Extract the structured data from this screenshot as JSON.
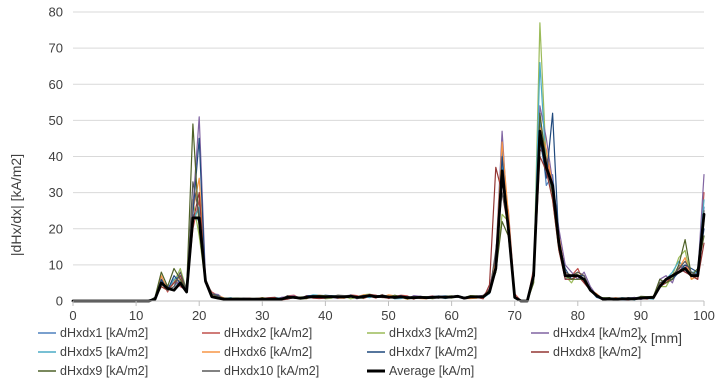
{
  "chart_data": {
    "type": "line",
    "title": "",
    "xlabel": "x [mm]",
    "ylabel": "|dHx/dx|  [kA/m2]",
    "xlim": [
      0,
      100
    ],
    "ylim": [
      0,
      80
    ],
    "x_ticks": [
      "0",
      "10",
      "20",
      "30",
      "40",
      "50",
      "60",
      "70",
      "80",
      "90",
      "100"
    ],
    "y_ticks": [
      "0",
      "10",
      "20",
      "30",
      "40",
      "50",
      "60",
      "70",
      "80"
    ],
    "grid": "horizontal",
    "legend_position": "bottom",
    "x": [
      0,
      1,
      2,
      3,
      4,
      5,
      6,
      7,
      8,
      9,
      10,
      11,
      12,
      13,
      14,
      15,
      16,
      17,
      18,
      19,
      20,
      21,
      22,
      23,
      24,
      25,
      26,
      27,
      28,
      29,
      30,
      31,
      32,
      33,
      34,
      35,
      36,
      37,
      38,
      39,
      40,
      41,
      42,
      43,
      44,
      45,
      46,
      47,
      48,
      49,
      50,
      51,
      52,
      53,
      54,
      55,
      56,
      57,
      58,
      59,
      60,
      61,
      62,
      63,
      64,
      65,
      66,
      67,
      68,
      69,
      70,
      71,
      72,
      73,
      74,
      75,
      76,
      77,
      78,
      79,
      80,
      81,
      82,
      83,
      84,
      85,
      86,
      87,
      88,
      89,
      90,
      91,
      92,
      93,
      94,
      95,
      96,
      97,
      98,
      99,
      100
    ],
    "series": [
      {
        "name": "dHxdx1 [kA/m2]",
        "color": "#4f81bd",
        "width": 1.2,
        "values": [
          0,
          0,
          0,
          0,
          0,
          0,
          0,
          0,
          0,
          0,
          0,
          0,
          0,
          0.6,
          5,
          3,
          4,
          6,
          2.5,
          24,
          22,
          6,
          2,
          1.2,
          0.8,
          0.5,
          0.6,
          0.3,
          0.5,
          0.6,
          0.6,
          0.3,
          0.7,
          0.5,
          1.1,
          1.4,
          0.9,
          1.2,
          1,
          1.3,
          1.1,
          1.3,
          0.9,
          1,
          1.3,
          1.1,
          1.1,
          1.6,
          1.1,
          1.4,
          1.2,
          1.1,
          1.3,
          1,
          0.7,
          0.9,
          0.8,
          1.1,
          1.4,
          0.8,
          1,
          1.1,
          0.6,
          0.8,
          0.9,
          1.6,
          2,
          10,
          42,
          18,
          1,
          0,
          0,
          6,
          50,
          32,
          35,
          18,
          6,
          7,
          7,
          6,
          3,
          1,
          0.4,
          0.5,
          0.6,
          0.4,
          0.3,
          0.6,
          0.6,
          1.1,
          0.8,
          4,
          6,
          6,
          8,
          9,
          7,
          8,
          26
        ]
      },
      {
        "name": "dHxdx2 [kA/m2]",
        "color": "#c0504d",
        "width": 1.2,
        "values": [
          0,
          0,
          0,
          0,
          0,
          0,
          0,
          0,
          0,
          0,
          0,
          0,
          0,
          0.9,
          6,
          2.5,
          6,
          4,
          3,
          20,
          28,
          5,
          2.5,
          1.5,
          0.4,
          0.9,
          0.3,
          0.7,
          0.8,
          0.4,
          0.3,
          0.7,
          0.3,
          0.6,
          1.4,
          1.6,
          0.6,
          1,
          1.6,
          1.6,
          1.3,
          1.1,
          1.1,
          0.8,
          1.7,
          1.5,
          0.7,
          1.3,
          0.8,
          1.8,
          0.7,
          1.3,
          1.6,
          1.4,
          0.5,
          1.3,
          1.1,
          1.4,
          1,
          1,
          1,
          1.4,
          0.7,
          1.2,
          1.2,
          1.4,
          2.6,
          13,
          35,
          25,
          2,
          0,
          0,
          9,
          42,
          40,
          32,
          16,
          8,
          7,
          9,
          5,
          3,
          2,
          0.4,
          0.9,
          0.3,
          0.7,
          0.7,
          0.5,
          0.8,
          0.5,
          1.2,
          5,
          5,
          6,
          9,
          10,
          7,
          6,
          30
        ]
      },
      {
        "name": "dHxdx3 [kA/m2]",
        "color": "#9bbb59",
        "width": 1.2,
        "values": [
          0,
          0,
          0,
          0,
          0,
          0,
          0,
          0,
          0,
          0,
          0,
          0,
          0,
          0.4,
          4,
          3,
          5,
          9,
          3,
          28,
          18,
          5,
          1.5,
          0.6,
          0.7,
          0.8,
          0.8,
          0.6,
          0.7,
          0.7,
          0.5,
          0.5,
          0.4,
          0.3,
          0.8,
          0.9,
          1.1,
          1.1,
          1,
          1.6,
          0.6,
          0.8,
          1.6,
          1.3,
          0.6,
          1,
          1.7,
          1.9,
          1.4,
          0.9,
          1.2,
          0.7,
          1,
          0.5,
          0.9,
          0.8,
          0.9,
          0.6,
          1,
          1.1,
          0.8,
          1.3,
          0.7,
          1.5,
          1.3,
          0.7,
          3.5,
          8,
          24,
          22,
          1,
          0,
          0,
          5,
          77,
          38,
          28,
          14,
          7,
          5,
          8,
          7,
          3,
          1.5,
          0.5,
          0.9,
          0.4,
          0.5,
          0.9,
          0.4,
          1.2,
          0.8,
          1,
          4,
          4,
          7,
          12,
          14,
          6,
          7,
          22
        ]
      },
      {
        "name": "dHxdx4 [kA/m2]",
        "color": "#8064a2",
        "width": 1.2,
        "values": [
          0,
          0,
          0,
          0,
          0,
          0,
          0,
          0,
          0,
          0,
          0,
          0,
          0,
          0.8,
          6,
          4,
          5,
          5,
          4,
          26,
          51,
          6,
          2,
          1.8,
          0.5,
          0.3,
          0.4,
          0.6,
          0.6,
          0.6,
          0.9,
          0.4,
          0.5,
          1,
          1.2,
          1.4,
          0.7,
          1.3,
          1.1,
          0.9,
          0.8,
          1.1,
          0.7,
          1.4,
          1.6,
          0.6,
          1.1,
          1.6,
          1.1,
          1,
          1.5,
          1.1,
          1.5,
          0.6,
          1.5,
          1.3,
          1,
          0.8,
          0.8,
          1.2,
          1.3,
          1.1,
          1,
          1.1,
          1.4,
          1.5,
          3.4,
          12,
          47,
          20,
          1,
          0,
          0,
          8,
          54,
          45,
          33,
          20,
          10,
          8,
          6,
          8,
          4,
          1.5,
          0.3,
          0.5,
          0.6,
          0.7,
          0.7,
          1,
          0.4,
          1.1,
          0.9,
          6,
          7,
          5,
          10,
          8,
          8,
          7,
          35
        ]
      },
      {
        "name": "dHxdx5 [kA/m2]",
        "color": "#4bacc6",
        "width": 1.2,
        "values": [
          0,
          0,
          0,
          0,
          0,
          0,
          0,
          0,
          0,
          0,
          0,
          0,
          0,
          0.6,
          5,
          3,
          6,
          7,
          3,
          22,
          26,
          5,
          2,
          1,
          0.7,
          0.9,
          0.3,
          0.6,
          0.5,
          0.4,
          0.5,
          0.5,
          1,
          0.7,
          0.5,
          1,
          0.6,
          1.2,
          1.7,
          1.6,
          1.5,
          1.5,
          1.4,
          0.9,
          1.5,
          0.8,
          1.3,
          0.9,
          1.5,
          1.4,
          1.5,
          0.6,
          0.7,
          1.2,
          0.8,
          0.8,
          1.2,
          1,
          1.1,
          0.7,
          1.1,
          1.4,
          0.8,
          1.4,
          1.3,
          0.8,
          2.1,
          9,
          38,
          22,
          1,
          0,
          0,
          6,
          66,
          36,
          30,
          15,
          7,
          6,
          7,
          6,
          3,
          1,
          0.9,
          0.6,
          0.5,
          0.9,
          0.7,
          0.3,
          1.2,
          0.7,
          0.5,
          5,
          6,
          8,
          11,
          9,
          8,
          8,
          28
        ]
      },
      {
        "name": "dHxdx6 [kA/m2]",
        "color": "#f79646",
        "width": 1.2,
        "values": [
          0,
          0,
          0,
          0,
          0,
          0,
          0,
          0,
          0,
          0,
          0,
          0,
          0,
          0.5,
          7,
          3,
          5,
          6,
          3,
          25,
          34,
          6,
          2,
          1.5,
          0.8,
          0.5,
          0.4,
          0.3,
          0.4,
          0.7,
          0.9,
          0.7,
          0.3,
          0.4,
          1.3,
          1.1,
          0.9,
          0.6,
          1.3,
          1.6,
          1.4,
          1.4,
          0.8,
          0.8,
          1.5,
          1.2,
          1.7,
          1.6,
          1.3,
          1.2,
          1.7,
          1.4,
          1.1,
          0.5,
          1.1,
          0.7,
          0.6,
          1.2,
          0.9,
          1,
          1.1,
          1.4,
          0.7,
          0.7,
          0.8,
          1.5,
          3,
          11,
          44,
          24,
          1,
          0,
          0,
          7,
          48,
          42,
          32,
          18,
          8,
          7,
          8,
          7,
          3,
          2,
          0.5,
          0.6,
          0.9,
          0.6,
          0.9,
          0.5,
          0.7,
          1,
          1.3,
          5,
          5,
          7,
          9,
          12,
          6,
          7,
          24
        ]
      },
      {
        "name": "dHxdx7 [kA/m2]",
        "color": "#1f497d",
        "width": 1.2,
        "values": [
          0,
          0,
          0,
          0,
          0,
          0,
          0,
          0,
          0,
          0,
          0,
          0,
          0,
          1,
          6,
          3,
          7,
          5,
          2.5,
          24,
          45,
          5,
          2,
          1.5,
          0.4,
          0.5,
          0.8,
          0.4,
          0.6,
          0.7,
          0.7,
          0.6,
          0.5,
          0.6,
          0.9,
          1,
          0.6,
          1.5,
          1.5,
          1.2,
          1.6,
          1.4,
          1.3,
          1,
          1.6,
          1.1,
          1.5,
          1.6,
          1.3,
          1.3,
          1,
          1.3,
          1.2,
          1.2,
          0.7,
          1.3,
          1.1,
          1.3,
          1.3,
          1.4,
          1.3,
          1.5,
          1,
          1.3,
          1.1,
          0.9,
          2.6,
          10,
          40,
          20,
          1,
          0,
          0,
          6,
          45,
          34,
          52,
          16,
          9,
          6,
          7,
          7,
          3,
          1,
          0.9,
          0.6,
          0.3,
          0.5,
          0.9,
          0.8,
          1.2,
          0.7,
          1,
          4,
          6,
          6,
          8,
          10,
          9,
          8,
          20
        ]
      },
      {
        "name": "dHxdx8 [kA/m2]",
        "color": "#943634",
        "width": 1.2,
        "values": [
          0,
          0,
          0,
          0,
          0,
          0,
          0,
          0,
          0,
          0,
          0,
          0,
          0,
          0.7,
          4,
          3,
          5,
          7,
          3,
          22,
          30,
          5,
          1.5,
          1.2,
          0.6,
          0.5,
          0.4,
          0.5,
          0.6,
          0.5,
          0.7,
          0.9,
          1,
          0.3,
          0.5,
          1,
          0.6,
          1.4,
          0.8,
          0.7,
          0.8,
          1.3,
          1,
          1,
          1.2,
          1.2,
          1.2,
          1.8,
          1.6,
          1,
          0.8,
          0.9,
          1.2,
          1.1,
          1,
          1.1,
          1,
          0.8,
          1.2,
          1.1,
          1.1,
          1.3,
          0.6,
          1.3,
          1,
          0.6,
          4.5,
          37,
          30,
          20,
          1,
          0,
          0,
          6,
          40,
          36,
          28,
          14,
          6,
          6,
          7,
          5,
          3,
          1.5,
          0.3,
          0.6,
          0.8,
          0.5,
          0.3,
          0.8,
          1,
          0.8,
          0.9,
          4,
          5,
          7,
          9,
          8,
          7,
          6,
          16
        ]
      },
      {
        "name": "dHxdx9 [kA/m2]",
        "color": "#4f6228",
        "width": 1.2,
        "values": [
          0,
          0,
          0,
          0,
          0,
          0,
          0,
          0,
          0,
          0,
          0,
          0,
          0,
          1,
          8,
          4,
          9,
          6,
          3,
          49,
          20,
          5,
          2,
          1,
          0.8,
          0.7,
          0.8,
          0.7,
          0.3,
          0.4,
          0.9,
          0.5,
          0.6,
          0.4,
          1.4,
          1,
          0.5,
          0.7,
          1.4,
          1.5,
          1.5,
          1.3,
          1.2,
          1.4,
          1.5,
          0.8,
          0.8,
          1.6,
          1.2,
          1.7,
          1.1,
          1.6,
          1.1,
          0.6,
          1,
          1.2,
          1.2,
          1,
          0.8,
          1.3,
          1.4,
          1.2,
          0.9,
          1.5,
          1.4,
          1.2,
          3.1,
          8,
          22,
          18,
          1,
          0,
          0,
          5,
          52,
          38,
          30,
          15,
          7,
          6,
          6,
          6,
          3,
          1.2,
          0.9,
          0.9,
          0.3,
          0.8,
          0.6,
          0.5,
          1.3,
          1.2,
          1.3,
          6,
          5,
          6,
          10,
          17,
          7,
          9,
          18
        ]
      },
      {
        "name": "dHxdx10 [kA/m2]",
        "color": "#595959",
        "width": 1.2,
        "values": [
          0,
          0,
          0,
          0,
          0,
          0,
          0,
          0,
          0,
          0,
          0,
          0,
          0,
          0.8,
          5,
          3,
          4,
          8,
          3,
          33,
          24,
          6,
          2,
          1.3,
          0.6,
          0.5,
          0.5,
          0.8,
          0.7,
          0.5,
          0.4,
          0.6,
          0.5,
          0.4,
          1.5,
          0.8,
          0.6,
          1,
          1.2,
          1.2,
          0.8,
          1.3,
          1.6,
          1.5,
          1.2,
          0.9,
          1.3,
          1.7,
          1.2,
          1.7,
          1.3,
          0.7,
          0.9,
          1,
          1.2,
          1.1,
          0.8,
          1,
          1.3,
          0.8,
          1.1,
          1.3,
          0.8,
          1.1,
          1.2,
          1.1,
          2.2,
          14,
          30,
          21,
          1,
          0,
          0,
          7,
          46,
          37,
          31,
          17,
          8,
          7,
          8,
          7,
          3,
          1.5,
          0.4,
          0.5,
          0.7,
          0.6,
          0.6,
          0.8,
          1,
          1.1,
          0.6,
          5,
          6,
          7,
          9,
          11,
          8,
          7,
          25
        ]
      },
      {
        "name": "Average [kA/m]",
        "color": "#000000",
        "width": 2.8,
        "values": [
          0,
          0,
          0,
          0,
          0,
          0,
          0,
          0,
          0,
          0,
          0,
          0,
          0,
          0.5,
          5,
          3.5,
          3,
          5,
          2.5,
          23,
          23,
          5.5,
          1.2,
          0.8,
          0.5,
          0.5,
          0.5,
          0.5,
          0.5,
          0.5,
          0.5,
          0.5,
          0.5,
          0.5,
          1,
          1,
          0.8,
          1,
          1.2,
          1.2,
          1.1,
          1.2,
          1.1,
          1.1,
          1.3,
          1,
          1.2,
          1.5,
          1.2,
          1.3,
          1.1,
          1,
          1.2,
          0.9,
          0.9,
          1,
          0.9,
          1,
          1.1,
          1,
          1.1,
          1.3,
          0.8,
          1.1,
          1.1,
          1.2,
          2.5,
          9,
          36,
          20,
          1,
          0,
          0,
          7,
          47,
          37,
          32,
          16,
          7,
          7,
          7,
          6,
          3,
          1.5,
          0.5,
          0.6,
          0.5,
          0.6,
          0.6,
          0.6,
          0.8,
          0.9,
          1,
          4,
          6,
          7,
          8,
          9,
          7,
          7,
          24
        ]
      }
    ]
  }
}
